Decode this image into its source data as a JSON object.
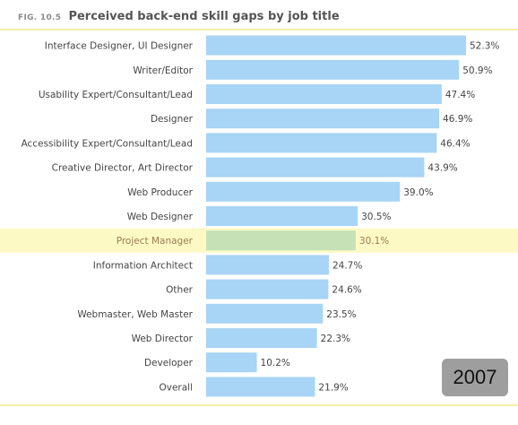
{
  "header": {
    "fig_label": "FIG. 10.5",
    "title": "Perceived back-end skill gaps by job title"
  },
  "year_badge": "2007",
  "colors": {
    "bar": "#a8d4f5",
    "highlight_bar": "#c6e1b6",
    "highlight_row": "#fdf9c4",
    "highlight_text": "#9a7c55",
    "label_text": "#444444",
    "rule": "#f3eeaa"
  },
  "chart_data": {
    "type": "bar",
    "orientation": "horizontal",
    "title": "Perceived back-end skill gaps by job title",
    "categories": [
      "Interface Designer, UI Designer",
      "Writer/Editor",
      "Usability Expert/Consultant/Lead",
      "Designer",
      "Accessibility Expert/Consultant/Lead",
      "Creative Director, Art Director",
      "Web Producer",
      "Web Designer",
      "Project Manager",
      "Information Architect",
      "Other",
      "Webmaster, Web Master",
      "Web Director",
      "Developer",
      "Overall"
    ],
    "values": [
      52.3,
      50.9,
      47.4,
      46.9,
      46.4,
      43.9,
      39.0,
      30.5,
      30.1,
      24.7,
      24.6,
      23.5,
      22.3,
      10.2,
      21.9
    ],
    "value_labels": [
      "52.3%",
      "50.9%",
      "47.4%",
      "46.9%",
      "46.4%",
      "43.9%",
      "39.0%",
      "30.5%",
      "30.1%",
      "24.7%",
      "24.6%",
      "23.5%",
      "22.3%",
      "10.2%",
      "21.9%"
    ],
    "highlight": "Project Manager",
    "xlim": [
      0,
      100
    ],
    "grid": false,
    "xlabel": "",
    "ylabel": ""
  }
}
